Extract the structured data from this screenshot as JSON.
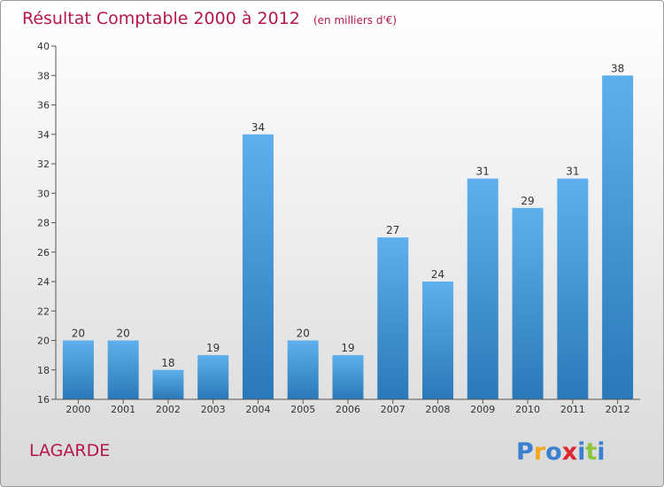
{
  "chart_data": {
    "type": "bar",
    "title": "Résultat Comptable 2000 à 2012",
    "subtitle": "(en milliers d'€)",
    "categories": [
      "2000",
      "2001",
      "2002",
      "2003",
      "2004",
      "2005",
      "2006",
      "2007",
      "2008",
      "2009",
      "2010",
      "2011",
      "2012"
    ],
    "values": [
      20,
      20,
      18,
      19,
      34,
      20,
      19,
      27,
      24,
      31,
      29,
      31,
      38
    ],
    "ylim": [
      16,
      40
    ],
    "yticks": [
      "16",
      "18",
      "20",
      "22",
      "24",
      "26",
      "28",
      "30",
      "32",
      "34",
      "36",
      "38",
      "40"
    ],
    "xlabel": "",
    "ylabel": "",
    "grid": false,
    "legend": "none",
    "bar_color_top": "#5eb0ec",
    "bar_color_bottom": "#2a78b8",
    "title_color": "#b5174b"
  },
  "footer": {
    "place_name": "LAGARDE"
  },
  "logo": {
    "text": "Proxiti",
    "letter_colors": [
      "#3a7fd0",
      "#f5a623",
      "#3a7fd0",
      "#e0262e",
      "#3a7fd0",
      "#8cc63f",
      "#3a7fd0"
    ]
  }
}
